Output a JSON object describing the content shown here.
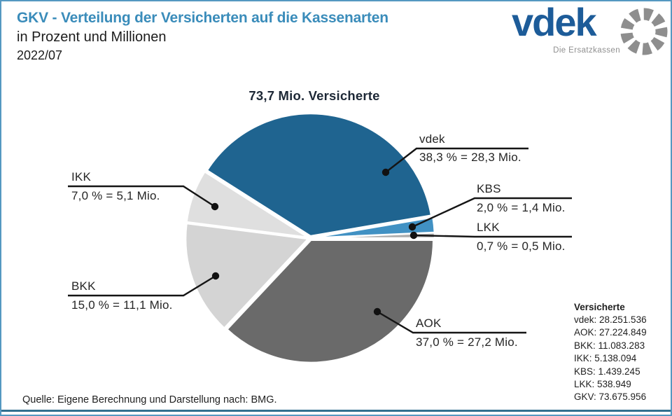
{
  "page": {
    "title_line1": "GKV - Verteilung der Versicherten auf die Kassenarten",
    "title_line2": "in Prozent und Millionen",
    "title_line3": "2022/07",
    "source": "Quelle: Eigene Berechnung und Darstellung nach: BMG.",
    "accent_blue": "#3a8cba",
    "border_blue": "#5598c1",
    "rule_teal": "#32708f"
  },
  "logo": {
    "name": "vdek",
    "tagline": "Die Ersatzkassen",
    "brand_blue": "#1d5c99",
    "ring_gray": "#8e8e8e"
  },
  "chart_data": {
    "type": "pie",
    "title": "73,7 Mio. Versicherte",
    "start_angle_deg": 0,
    "direction": "ccw",
    "slices": [
      {
        "key": "LKK",
        "label": "LKK",
        "pct": 0.7,
        "mio": 0.5,
        "value_label": "0,7 % = 0,5 Mio.",
        "color": "#adadad"
      },
      {
        "key": "KBS",
        "label": "KBS",
        "pct": 2.0,
        "mio": 1.4,
        "value_label": "2,0 % = 1,4 Mio.",
        "color": "#4191c3"
      },
      {
        "key": "vdek",
        "label": "vdek",
        "pct": 38.3,
        "mio": 28.3,
        "value_label": "38,3 % = 28,3 Mio.",
        "color": "#1f6490"
      },
      {
        "key": "IKK",
        "label": "IKK",
        "pct": 7.0,
        "mio": 5.1,
        "value_label": "7,0 % = 5,1 Mio.",
        "color": "#dfdfdf"
      },
      {
        "key": "BKK",
        "label": "BKK",
        "pct": 15.0,
        "mio": 11.1,
        "value_label": "15,0 % = 11,1 Mio.",
        "color": "#d4d4d4"
      },
      {
        "key": "AOK",
        "label": "AOK",
        "pct": 37.0,
        "mio": 27.2,
        "value_label": "37,0 % = 27,2 Mio.",
        "color": "#6a6a6a"
      }
    ]
  },
  "legend": {
    "title": "Versicherte",
    "rows": [
      {
        "label": "vdek",
        "value": "28.251.536"
      },
      {
        "label": "AOK",
        "value": "27.224.849"
      },
      {
        "label": "BKK",
        "value": "11.083.283"
      },
      {
        "label": "IKK",
        "value": "5.138.094"
      },
      {
        "label": "KBS",
        "value": "1.439.245"
      },
      {
        "label": "LKK",
        "value": "538.949"
      },
      {
        "label": "GKV",
        "value": "73.675.956"
      }
    ]
  }
}
